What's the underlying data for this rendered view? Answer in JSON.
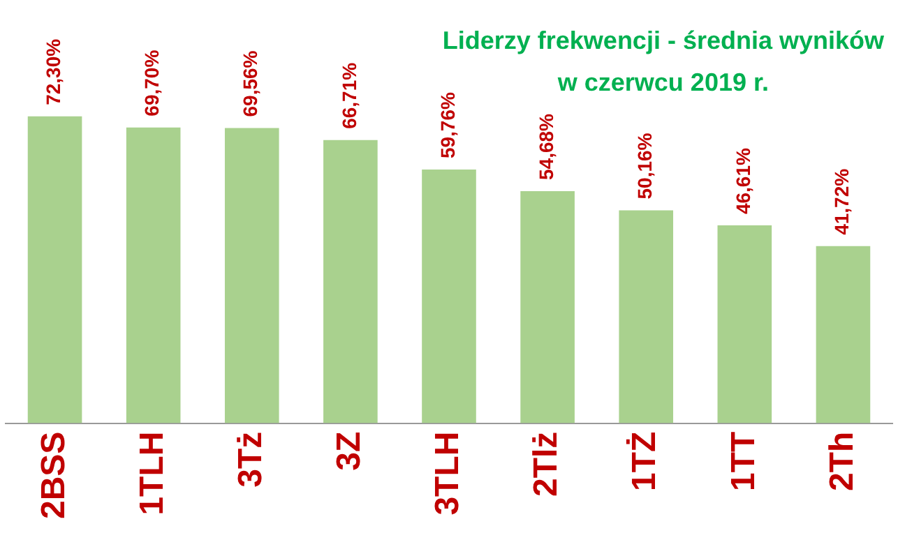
{
  "chart_data": {
    "type": "bar",
    "title": "Liderzy frekwencji - średnia wyników\nw czerwcu 2019 r.",
    "categories": [
      "2BSS",
      "1TLH",
      "3Tż",
      "3Z",
      "3TLH",
      "2Tlż",
      "1TŻ",
      "1TT",
      "2Th"
    ],
    "values": [
      72.3,
      69.7,
      69.56,
      66.71,
      59.76,
      54.68,
      50.16,
      46.61,
      41.72
    ],
    "value_labels": [
      "72,30%",
      "69,70%",
      "69,56%",
      "66,71%",
      "59,76%",
      "54,68%",
      "50,16%",
      "46,61%",
      "41,72%"
    ],
    "color": "#a9d18e",
    "grid": false,
    "legend": false
  }
}
